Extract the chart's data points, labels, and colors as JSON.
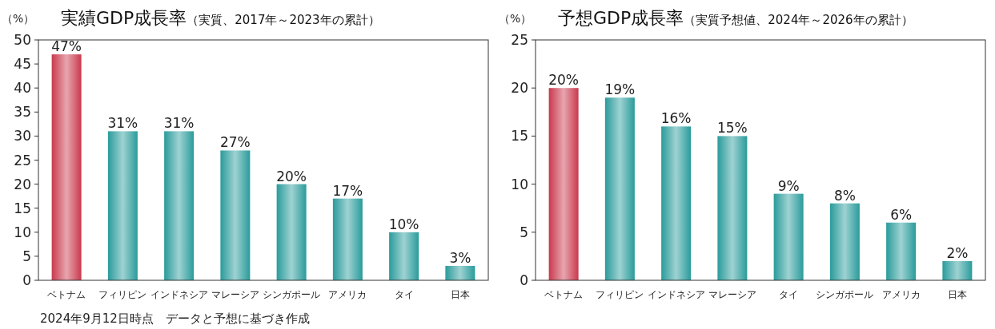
{
  "chart_data": [
    {
      "type": "bar",
      "title": "実績GDP成長率",
      "subtitle": "（実質、2017年～2023年の累計）",
      "ylabel": "（%）",
      "categories": [
        "ベトナム",
        "フィリピン",
        "インドネシア",
        "マレーシア",
        "シンガポール",
        "アメリカ",
        "タイ",
        "日本"
      ],
      "values": [
        47,
        31,
        31,
        27,
        20,
        17,
        10,
        3
      ],
      "value_labels": [
        "47%",
        "31%",
        "31%",
        "27%",
        "20%",
        "17%",
        "10%",
        "3%"
      ],
      "colors": [
        "#c9394d",
        "#2a9b9b",
        "#2a9b9b",
        "#2a9b9b",
        "#2a9b9b",
        "#2a9b9b",
        "#2a9b9b",
        "#2a9b9b"
      ],
      "ylim": [
        0,
        50
      ],
      "yticks": [
        0,
        5,
        10,
        15,
        20,
        25,
        30,
        35,
        40,
        45,
        50
      ],
      "annotations": [
        "2024年9月12日時点　データと予想に基づき作成"
      ]
    },
    {
      "type": "bar",
      "title": "予想GDP成長率",
      "subtitle": "（実質予想値、2024年～2026年の累計）",
      "ylabel": "（%）",
      "categories": [
        "ベトナム",
        "フィリピン",
        "インドネシア",
        "マレーシア",
        "タイ",
        "シンガポール",
        "アメリカ",
        "日本"
      ],
      "values": [
        20,
        19,
        16,
        15,
        9,
        8,
        6,
        2
      ],
      "value_labels": [
        "20%",
        "19%",
        "16%",
        "15%",
        "9%",
        "8%",
        "6%",
        "2%"
      ],
      "colors": [
        "#c9394d",
        "#2a9b9b",
        "#2a9b9b",
        "#2a9b9b",
        "#2a9b9b",
        "#2a9b9b",
        "#2a9b9b",
        "#2a9b9b"
      ],
      "ylim": [
        0,
        25
      ],
      "yticks": [
        0,
        5,
        10,
        15,
        20,
        25
      ]
    }
  ]
}
